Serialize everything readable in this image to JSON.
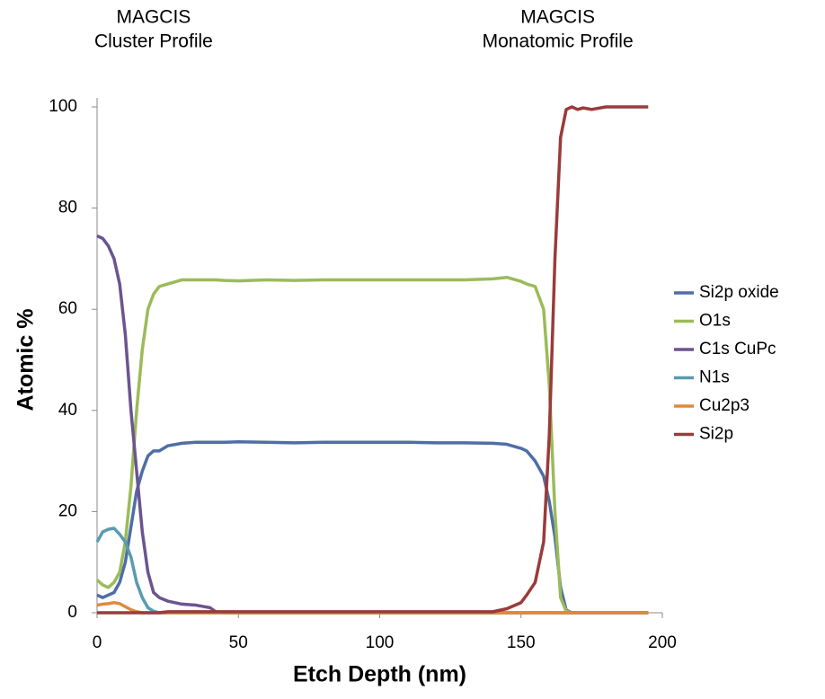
{
  "chart_data": {
    "type": "line",
    "annotations": [
      {
        "lines": [
          "MAGCIS",
          "Cluster Profile"
        ],
        "x": 20
      },
      {
        "lines": [
          "MAGCIS",
          "Monatomic Profile"
        ],
        "x": 163
      }
    ],
    "xlabel": "Etch Depth (nm)",
    "ylabel": "Atomic %",
    "xlim": [
      0,
      200
    ],
    "xticks": [
      0,
      50,
      100,
      150,
      200
    ],
    "ylim": [
      0,
      100
    ],
    "yticks": [
      0,
      20,
      40,
      60,
      80,
      100
    ],
    "x": [
      0,
      2,
      4,
      6,
      8,
      10,
      12,
      14,
      16,
      18,
      20,
      22,
      25,
      30,
      35,
      40,
      42,
      45,
      50,
      60,
      70,
      80,
      90,
      100,
      110,
      120,
      130,
      140,
      145,
      150,
      152,
      155,
      158,
      160,
      162,
      164,
      166,
      168,
      170,
      172,
      175,
      180,
      190,
      195
    ],
    "series": [
      {
        "name": "Si2p oxide",
        "color": "#4f6ea6",
        "values": [
          3.5,
          3,
          3.5,
          4,
          6,
          10,
          17,
          24,
          28,
          31,
          32,
          32,
          33,
          33.5,
          33.7,
          33.7,
          33.7,
          33.7,
          33.8,
          33.7,
          33.6,
          33.7,
          33.7,
          33.7,
          33.7,
          33.6,
          33.6,
          33.5,
          33.3,
          32.5,
          32,
          30,
          27,
          22,
          15,
          5,
          0.5,
          0,
          0,
          0,
          0,
          0,
          0,
          0
        ]
      },
      {
        "name": "O1s",
        "color": "#9bbb59",
        "values": [
          6.5,
          5.5,
          5,
          6,
          8,
          14,
          25,
          40,
          52,
          60,
          63,
          64.5,
          65,
          65.8,
          65.8,
          65.8,
          65.8,
          65.7,
          65.6,
          65.8,
          65.7,
          65.8,
          65.8,
          65.8,
          65.8,
          65.8,
          65.8,
          66,
          66.3,
          65.5,
          65,
          64.5,
          60,
          45,
          20,
          3,
          0.3,
          0,
          0,
          0,
          0,
          0,
          0,
          0
        ]
      },
      {
        "name": "C1s CuPc",
        "color": "#6b5490",
        "values": [
          74.5,
          74,
          72.5,
          70,
          65,
          55,
          40,
          28,
          16,
          8,
          4,
          3,
          2.3,
          1.7,
          1.5,
          1,
          0.2,
          0,
          0,
          0,
          0,
          0,
          0,
          0,
          0,
          0,
          0,
          0,
          0,
          0,
          0,
          0,
          0,
          0,
          0,
          0,
          0,
          0,
          0,
          0,
          0,
          0,
          0,
          0
        ]
      },
      {
        "name": "N1s",
        "color": "#5a9bb0",
        "values": [
          14,
          16,
          16.5,
          16.7,
          15.5,
          14,
          11,
          6,
          3,
          1,
          0.3,
          0,
          0,
          0,
          0,
          0,
          0,
          0,
          0,
          0,
          0,
          0,
          0,
          0,
          0,
          0,
          0,
          0,
          0,
          0,
          0,
          0,
          0,
          0,
          0,
          0,
          0,
          0,
          0,
          0,
          0,
          0,
          0,
          0
        ]
      },
      {
        "name": "Cu2p3",
        "color": "#e08a3c",
        "values": [
          1.5,
          1.7,
          1.8,
          2,
          1.8,
          1.2,
          0.6,
          0.2,
          0,
          0,
          0,
          0,
          0,
          0,
          0,
          0,
          0,
          0,
          0,
          0,
          0,
          0,
          0,
          0,
          0,
          0,
          0,
          0,
          0,
          0,
          0,
          0,
          0,
          0,
          0,
          0,
          0,
          0,
          0,
          0,
          0,
          0,
          0,
          0
        ]
      },
      {
        "name": "Si2p",
        "color": "#9a3b3b",
        "values": [
          0,
          0,
          0,
          0,
          0,
          0,
          0,
          0,
          0,
          0,
          0,
          0,
          0.2,
          0.2,
          0.2,
          0.2,
          0.2,
          0.2,
          0.2,
          0.2,
          0.2,
          0.2,
          0.2,
          0.2,
          0.2,
          0.2,
          0.2,
          0.2,
          0.8,
          2,
          3.5,
          6,
          14,
          35,
          70,
          94,
          99.5,
          100,
          99.5,
          99.8,
          99.5,
          100,
          100,
          100
        ]
      }
    ],
    "legend": "right"
  }
}
